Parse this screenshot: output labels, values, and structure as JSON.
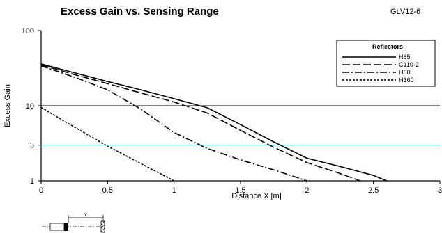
{
  "header": {
    "title": "Excess Gain vs. Sensing Range",
    "model": "GLV12-6"
  },
  "diagram": {
    "label": "x"
  },
  "chart_data": {
    "type": "line",
    "title": "Excess Gain vs. Sensing Range",
    "xlabel": "Distance X [m]",
    "ylabel": "Excess Gain",
    "xlim": [
      0,
      3
    ],
    "ylim": [
      1,
      100
    ],
    "yscale": "log",
    "xticks": [
      0,
      0.5,
      1,
      1.5,
      2,
      2.5,
      3
    ],
    "xtick_labels": [
      "0",
      "0.5",
      "1",
      "1.5",
      "2",
      "2.5",
      "3"
    ],
    "yticks": [
      1,
      3,
      10,
      100
    ],
    "ytick_labels": [
      "1",
      "3",
      "10",
      "100"
    ],
    "hlines": [
      {
        "y": 10,
        "color": "#000000"
      },
      {
        "y": 3,
        "color": "#2ab7c4"
      }
    ],
    "legend_title": "Reflectors",
    "legend_position": "top-right",
    "series": [
      {
        "name": "H85",
        "style": "solid",
        "x": [
          0,
          0.25,
          0.5,
          0.75,
          1.0,
          1.25,
          1.5,
          1.75,
          2.0,
          2.25,
          2.5,
          2.6
        ],
        "y": [
          36,
          27.5,
          21,
          16.3,
          12.4,
          9.4,
          5.6,
          3.3,
          2.0,
          1.55,
          1.18,
          1.0
        ]
      },
      {
        "name": "C110-2",
        "style": "dashed",
        "x": [
          0,
          0.25,
          0.5,
          0.75,
          1.0,
          1.25,
          1.5,
          1.75,
          2.0,
          2.25,
          2.4
        ],
        "y": [
          35,
          26,
          19.7,
          14.8,
          11.2,
          8.0,
          4.7,
          2.8,
          1.75,
          1.25,
          1.0
        ]
      },
      {
        "name": "H60",
        "style": "dashdot",
        "x": [
          0,
          0.25,
          0.5,
          0.75,
          1.0,
          1.25,
          1.5,
          1.75,
          2.0
        ],
        "y": [
          34,
          24,
          16.3,
          9.0,
          4.4,
          2.7,
          1.9,
          1.4,
          1.0
        ]
      },
      {
        "name": "H160",
        "style": "dotted",
        "x": [
          0,
          0.25,
          0.5,
          0.75,
          1.0
        ],
        "y": [
          9.5,
          5.2,
          2.9,
          1.7,
          1.0
        ]
      }
    ]
  }
}
